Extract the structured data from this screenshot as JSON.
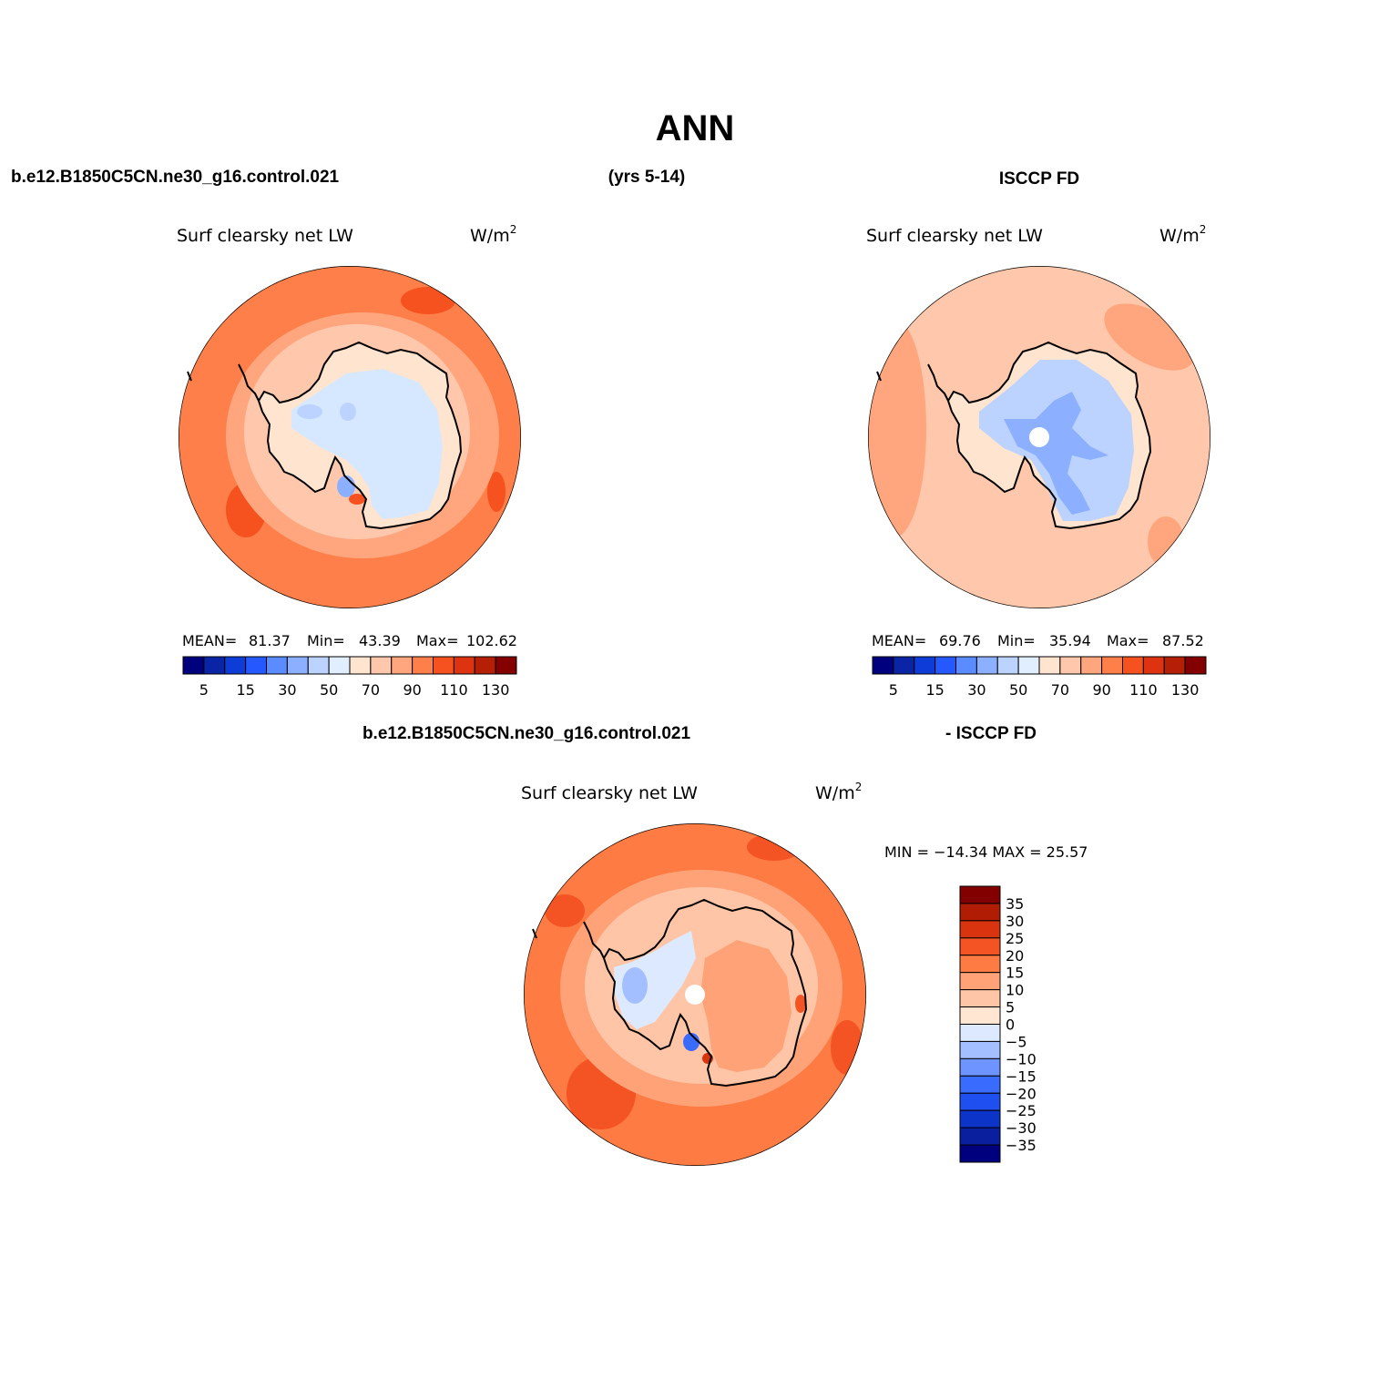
{
  "main_title": "ANN",
  "top_left_case": "b.e12.B1850C5CN.ne30_g16.control.021",
  "top_years": "(yrs 5-14)",
  "top_right_case": "ISCCP FD",
  "bottom_case_left": "b.e12.B1850C5CN.ne30_g16.control.021",
  "bottom_case_right": "- ISCCP FD",
  "colors": {
    "abs_scale": [
      "#00007f",
      "#0a24a6",
      "#0d3dd6",
      "#2559ff",
      "#5a8bff",
      "#8cb0ff",
      "#bcd3ff",
      "#e1eeff",
      "#ffe4d0",
      "#ffc8ac",
      "#ffa67e",
      "#ff7f4a",
      "#f5521f",
      "#dd3310",
      "#b41f06",
      "#840000"
    ],
    "diff_scale": [
      "#00007f",
      "#0a1f9e",
      "#0d34c8",
      "#1f4fee",
      "#3a6bff",
      "#6e95ff",
      "#a4bfff",
      "#dce9ff",
      "#ffe6d2",
      "#ffc5a6",
      "#ffa277",
      "#ff7b44",
      "#f45423",
      "#d8340f",
      "#b01c04",
      "#830000"
    ],
    "ocean_warm": "#ff7f4a",
    "ocean_mid": "#ffa67e",
    "coast_light": "#ffc8ac",
    "ice_light": "#d6e8ff",
    "ice_blue": "#a4c2ff",
    "ice_deep": "#7ea6f5"
  },
  "maps": [
    {
      "id": "model",
      "title": "Surf clearsky net LW",
      "units_base": "W/m",
      "units_sup": "2",
      "stats": {
        "mean_label": "MEAN=",
        "mean": "81.37",
        "min_label": "Min=",
        "min": "43.39",
        "max_label": "Max=",
        "max": "102.62"
      },
      "colorbar_ticks": [
        "5",
        "15",
        "30",
        "50",
        "70",
        "90",
        "110",
        "130"
      ]
    },
    {
      "id": "obs",
      "title": "Surf clearsky net LW",
      "units_base": "W/m",
      "units_sup": "2",
      "stats": {
        "mean_label": "MEAN=",
        "mean": "69.76",
        "min_label": "Min=",
        "min": "35.94",
        "max_label": "Max=",
        "max": "87.52"
      },
      "colorbar_ticks": [
        "5",
        "15",
        "30",
        "50",
        "70",
        "90",
        "110",
        "130"
      ]
    },
    {
      "id": "diff",
      "title": "Surf clearsky net LW",
      "units_base": "W/m",
      "units_sup": "2",
      "minmax": "MIN = −14.34 MAX =  25.57",
      "colorbar_ticks": [
        "35",
        "30",
        "25",
        "20",
        "15",
        "10",
        "5",
        "0",
        "−5",
        "−10",
        "−15",
        "−20",
        "−25",
        "−30",
        "−35"
      ]
    }
  ]
}
